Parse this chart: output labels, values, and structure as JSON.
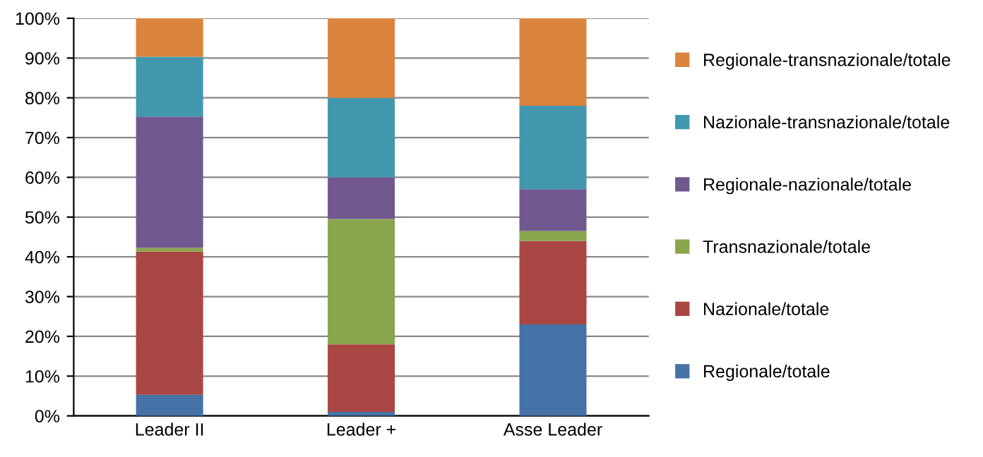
{
  "chart_data": {
    "type": "bar",
    "stacked": true,
    "categories": [
      "Leader II",
      "Leader +",
      "Asse Leader"
    ],
    "series": [
      {
        "name": "Regionale/totale",
        "color": "#4572a7",
        "values": [
          5.3,
          1,
          23
        ]
      },
      {
        "name": "Nazionale/totale",
        "color": "#aa4643",
        "values": [
          36,
          17,
          21
        ]
      },
      {
        "name": "Transnazionale/totale",
        "color": "#89a54e",
        "values": [
          1,
          31.5,
          2.5
        ]
      },
      {
        "name": "Regionale-nazionale/totale",
        "color": "#71588f",
        "values": [
          33,
          10.5,
          10.5
        ]
      },
      {
        "name": "Nazionale-transnazionale/totale",
        "color": "#4198af",
        "values": [
          15,
          20,
          21
        ]
      },
      {
        "name": "Regionale-transnazionale/totale",
        "color": "#db843d",
        "values": [
          9.7,
          20,
          22
        ]
      }
    ],
    "ylim": [
      0,
      100
    ],
    "yticks": [
      {
        "value": 0,
        "label": "0%"
      },
      {
        "value": 10,
        "label": "10%"
      },
      {
        "value": 20,
        "label": "20%"
      },
      {
        "value": 30,
        "label": "30%"
      },
      {
        "value": 40,
        "label": "40%"
      },
      {
        "value": 50,
        "label": "50%"
      },
      {
        "value": 60,
        "label": "60%"
      },
      {
        "value": 70,
        "label": "70%"
      },
      {
        "value": 80,
        "label": "80%"
      },
      {
        "value": 90,
        "label": "90%"
      },
      {
        "value": 100,
        "label": "100%"
      }
    ],
    "grid": "y",
    "legend": "right"
  }
}
